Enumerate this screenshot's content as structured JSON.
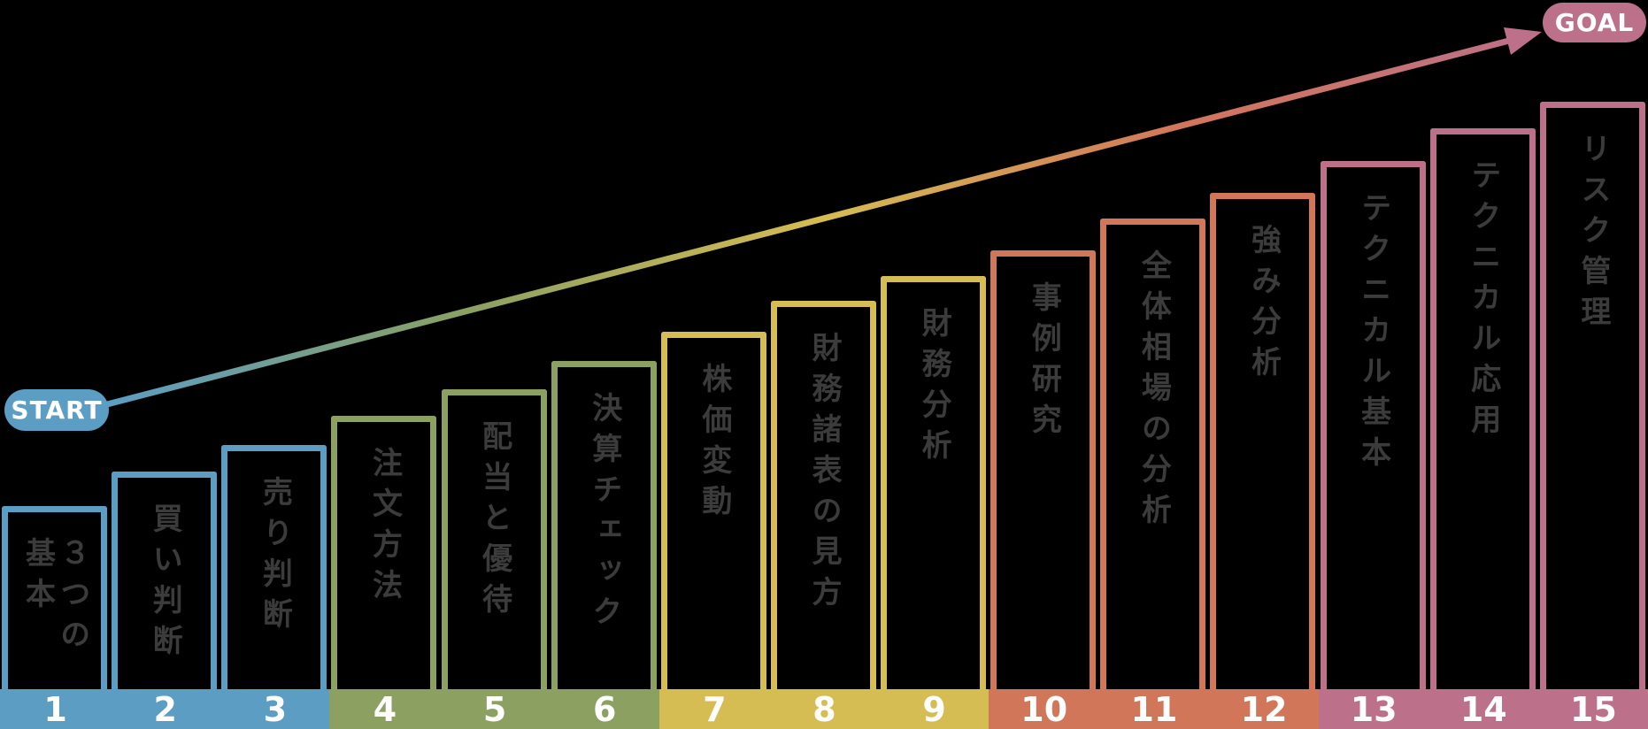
{
  "badges": {
    "start": "START",
    "goal": "GOAL"
  },
  "colors": {
    "background": "#000000",
    "step_label_text": "#3b3b3b",
    "number_text": "#ffffff",
    "phase_blue": "#5b9dc3",
    "phase_olive": "#8ba061",
    "phase_yellow": "#d5bc53",
    "phase_orange": "#d2765a",
    "phase_mauve": "#bc7089"
  },
  "phases": [
    {
      "name": "phase-1",
      "color": "#5b9dc3",
      "steps": [
        {
          "number": "1",
          "label": "３つの基本"
        },
        {
          "number": "2",
          "label": "買い判断"
        },
        {
          "number": "3",
          "label": "売り判断"
        }
      ]
    },
    {
      "name": "phase-2",
      "color": "#8ba061",
      "steps": [
        {
          "number": "4",
          "label": "注文方法"
        },
        {
          "number": "5",
          "label": "配当と優待"
        },
        {
          "number": "6",
          "label": "決算チェック"
        }
      ]
    },
    {
      "name": "phase-3",
      "color": "#d5bc53",
      "steps": [
        {
          "number": "7",
          "label": "株価変動"
        },
        {
          "number": "8",
          "label": "財務諸表の見方"
        },
        {
          "number": "9",
          "label": "財務分析"
        }
      ]
    },
    {
      "name": "phase-4",
      "color": "#d2765a",
      "steps": [
        {
          "number": "10",
          "label": "事例研究"
        },
        {
          "number": "11",
          "label": "全体相場の分析"
        },
        {
          "number": "12",
          "label": "強み分析"
        }
      ]
    },
    {
      "name": "phase-5",
      "color": "#bc7089",
      "steps": [
        {
          "number": "13",
          "label": "テクニカル基本"
        },
        {
          "number": "14",
          "label": "テクニカル応用"
        },
        {
          "number": "15",
          "label": "リスク管理"
        }
      ]
    }
  ]
}
